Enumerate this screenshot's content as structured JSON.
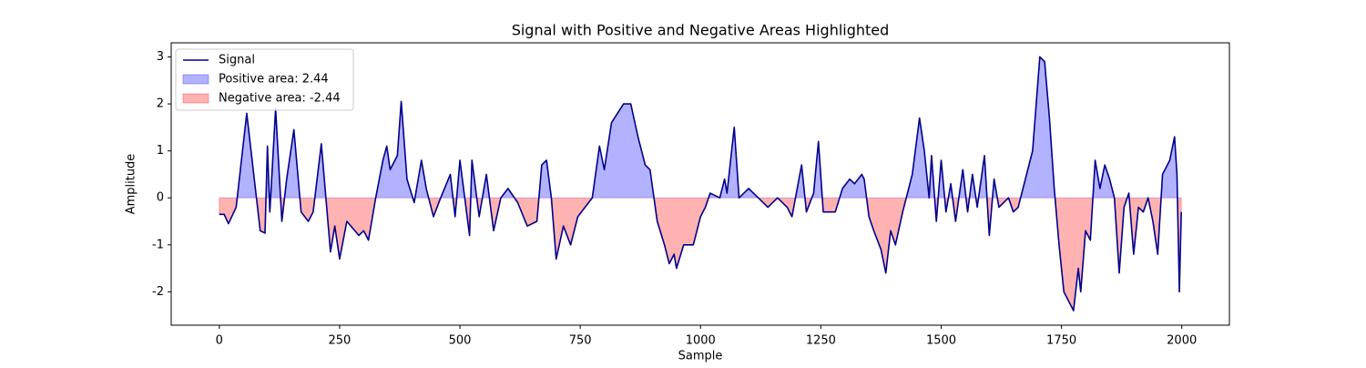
{
  "chart_data": {
    "type": "area-line",
    "title": "Signal with Positive and Negative Areas Highlighted",
    "x_label": "Sample",
    "y_label": "Amplitude",
    "x": [
      0,
      10,
      19,
      35,
      57,
      85,
      95,
      100,
      105,
      117,
      130,
      140,
      155,
      170,
      185,
      195,
      212,
      231,
      240,
      250,
      265,
      290,
      300,
      310,
      325,
      340,
      348,
      355,
      370,
      378,
      390,
      405,
      420,
      430,
      445,
      460,
      480,
      490,
      500,
      520,
      525,
      540,
      555,
      570,
      585,
      600,
      620,
      640,
      660,
      670,
      680,
      690,
      700,
      715,
      730,
      745,
      760,
      775,
      790,
      800,
      815,
      840,
      855,
      870,
      885,
      895,
      910,
      925,
      935,
      945,
      950,
      965,
      985,
      1000,
      1010,
      1020,
      1040,
      1050,
      1055,
      1070,
      1080,
      1100,
      1120,
      1140,
      1160,
      1180,
      1190,
      1210,
      1220,
      1235,
      1245,
      1255,
      1280,
      1295,
      1310,
      1320,
      1335,
      1340,
      1350,
      1360,
      1375,
      1385,
      1395,
      1405,
      1420,
      1440,
      1455,
      1465,
      1475,
      1480,
      1490,
      1500,
      1510,
      1520,
      1530,
      1545,
      1555,
      1565,
      1575,
      1590,
      1600,
      1610,
      1620,
      1640,
      1650,
      1660,
      1675,
      1690,
      1705,
      1715,
      1725,
      1735,
      1745,
      1755,
      1765,
      1775,
      1785,
      1790,
      1800,
      1810,
      1820,
      1830,
      1840,
      1850,
      1860,
      1870,
      1880,
      1890,
      1900,
      1910,
      1920,
      1930,
      1940,
      1950,
      1960,
      1975,
      1985,
      1990,
      1995,
      1999
    ],
    "series": [
      {
        "name": "Signal",
        "color": "#00008b",
        "values": [
          -0.35,
          -0.35,
          -0.55,
          -0.2,
          1.8,
          -0.7,
          -0.75,
          1.1,
          -0.3,
          1.9,
          -0.5,
          0.4,
          1.45,
          -0.3,
          -0.5,
          -0.3,
          1.15,
          -1.15,
          -0.6,
          -1.3,
          -0.5,
          -0.8,
          -0.7,
          -0.9,
          0.0,
          0.8,
          1.1,
          0.6,
          0.9,
          2.05,
          0.4,
          -0.1,
          0.8,
          0.2,
          -0.4,
          0.0,
          0.5,
          -0.4,
          0.8,
          -0.8,
          0.8,
          -0.4,
          0.5,
          -0.7,
          0.0,
          0.2,
          -0.1,
          -0.6,
          -0.5,
          0.7,
          0.8,
          0.0,
          -1.3,
          -0.6,
          -1.0,
          -0.4,
          -0.2,
          0.0,
          1.1,
          0.6,
          1.6,
          2.0,
          2.0,
          1.3,
          0.7,
          0.6,
          -0.5,
          -1.0,
          -1.4,
          -1.2,
          -1.5,
          -1.0,
          -1.0,
          -0.4,
          -0.2,
          0.1,
          0.0,
          0.4,
          0.1,
          1.5,
          0.0,
          0.2,
          0.0,
          -0.2,
          0.0,
          -0.2,
          -0.4,
          0.7,
          -0.3,
          0.1,
          1.2,
          -0.3,
          -0.3,
          0.2,
          0.4,
          0.3,
          0.5,
          0.4,
          -0.4,
          -0.7,
          -1.1,
          -1.6,
          -0.7,
          -1.0,
          -0.3,
          0.5,
          1.7,
          1.0,
          0.0,
          0.9,
          -0.5,
          0.8,
          -0.3,
          0.3,
          -0.5,
          0.6,
          -0.3,
          0.5,
          -0.2,
          0.9,
          -0.8,
          0.4,
          -0.2,
          0.0,
          -0.3,
          -0.2,
          0.4,
          1.0,
          3.0,
          2.9,
          1.7,
          0.2,
          -1.0,
          -2.0,
          -2.2,
          -2.4,
          -1.5,
          -2.0,
          -0.7,
          -0.9,
          0.8,
          0.2,
          0.7,
          0.4,
          0.0,
          -1.6,
          -0.2,
          0.1,
          -1.2,
          -0.2,
          -0.3,
          0.0,
          -0.5,
          -1.2,
          0.5,
          0.8,
          1.3,
          0.5,
          -2.0,
          -0.3
        ]
      }
    ],
    "areas": [
      {
        "name": "Positive area: 2.44",
        "color": "rgba(0,0,255,0.3)",
        "side": "positive"
      },
      {
        "name": "Negative area: -2.44",
        "color": "rgba(255,0,0,0.3)",
        "side": "negative"
      }
    ],
    "xlim": [
      -99.95,
      2098.95
    ],
    "xticks": [
      0,
      250,
      500,
      750,
      1000,
      1250,
      1500,
      1750,
      2000
    ],
    "ylim": [
      -2.71,
      3.3
    ],
    "yticks": [
      -2,
      -1,
      0,
      1,
      2,
      3
    ],
    "legend": "upper left"
  }
}
